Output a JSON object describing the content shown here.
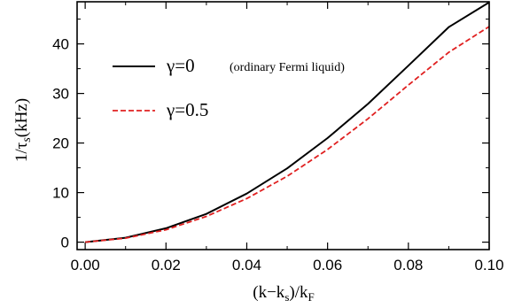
{
  "chart_data": {
    "type": "line",
    "xlabel": "(k−k",
    "xlabel_sub_s": "s",
    "xlabel_mid": ")/k",
    "xlabel_sub_F": "F",
    "ylabel_main": "1/τ",
    "ylabel_sub": "s",
    "ylabel_unit": "(kHz)",
    "xlim": [
      -0.002,
      0.1
    ],
    "ylim": [
      -1.5,
      48.5
    ],
    "x_ticks": [
      0.0,
      0.02,
      0.04,
      0.06,
      0.08,
      0.1
    ],
    "x_tick_labels": [
      "0.00",
      "0.02",
      "0.04",
      "0.06",
      "0.08",
      "0.10"
    ],
    "y_ticks": [
      0,
      10,
      20,
      30,
      40
    ],
    "y_tick_labels": [
      "0",
      "10",
      "20",
      "30",
      "40"
    ],
    "grid": false,
    "legend_position": "top-left",
    "series": [
      {
        "name": "γ=0",
        "note": "(ordinary Fermi liquid)",
        "color": "#000000",
        "dash": "solid",
        "x": [
          0.0,
          0.01,
          0.02,
          0.03,
          0.04,
          0.05,
          0.06,
          0.07,
          0.08,
          0.09,
          0.1
        ],
        "y": [
          0.0,
          0.9,
          2.8,
          5.7,
          9.8,
          14.9,
          21.0,
          27.9,
          35.6,
          43.4,
          48.4
        ]
      },
      {
        "name": "γ=0.5",
        "color": "#e02020",
        "dash": "dashed",
        "x": [
          0.0,
          0.01,
          0.02,
          0.03,
          0.04,
          0.05,
          0.06,
          0.07,
          0.08,
          0.09,
          0.1
        ],
        "y": [
          0.0,
          0.8,
          2.5,
          5.2,
          8.8,
          13.3,
          18.7,
          24.9,
          31.7,
          38.3,
          43.5
        ]
      }
    ]
  }
}
